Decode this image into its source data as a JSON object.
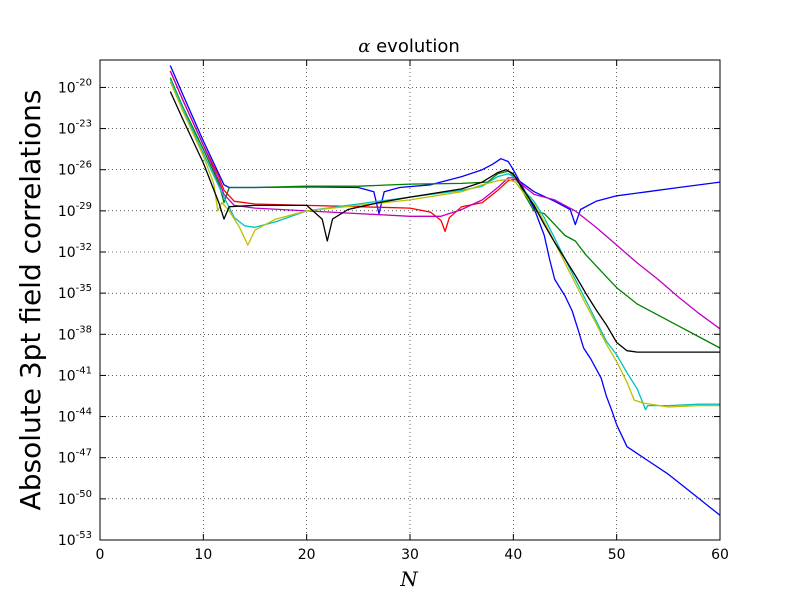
{
  "chart_data": {
    "type": "line",
    "title_symbol": "α",
    "title_rest": " evolution",
    "xlabel": "N",
    "ylabel": "Absolute 3pt field correlations",
    "xlim": [
      0,
      60
    ],
    "ylim_log10": [
      -53,
      -18
    ],
    "yscale": "log",
    "grid": true,
    "x_ticks": [
      0,
      10,
      20,
      30,
      40,
      50,
      60
    ],
    "y_tick_exponents": [
      -53,
      -50,
      -47,
      -44,
      -41,
      -38,
      -35,
      -32,
      -29,
      -26,
      -23,
      -20
    ],
    "y_tick_base": "10",
    "series": [
      {
        "name": "series-blue",
        "color": "#0000ff",
        "points": [
          [
            6.8,
            -18.4
          ],
          [
            8,
            -20.5
          ],
          [
            10,
            -23.9
          ],
          [
            12,
            -27.1
          ],
          [
            12.5,
            -27.3
          ],
          [
            15,
            -27.3
          ],
          [
            20,
            -27.25
          ],
          [
            25,
            -27.3
          ],
          [
            26.5,
            -27.6
          ],
          [
            27,
            -29.2
          ],
          [
            27.5,
            -27.6
          ],
          [
            29,
            -27.3
          ],
          [
            32,
            -27.1
          ],
          [
            35,
            -26.5
          ],
          [
            37,
            -26
          ],
          [
            38,
            -25.6
          ],
          [
            38.8,
            -25.2
          ],
          [
            39.5,
            -25.4
          ],
          [
            40,
            -26
          ],
          [
            41,
            -27.4
          ],
          [
            42,
            -28.8
          ],
          [
            43,
            -30.8
          ],
          [
            43.5,
            -32.5
          ],
          [
            44,
            -34
          ],
          [
            45,
            -35.2
          ],
          [
            45.7,
            -36.3
          ],
          [
            46.2,
            -37.5
          ],
          [
            46.8,
            -39
          ],
          [
            47.5,
            -39.8
          ],
          [
            48,
            -40.5
          ],
          [
            48.5,
            -41.2
          ],
          [
            49,
            -42.5
          ],
          [
            49.5,
            -43.5
          ],
          [
            50,
            -44.6
          ],
          [
            51,
            -46.2
          ],
          [
            53,
            -47.2
          ],
          [
            55,
            -48.2
          ],
          [
            57,
            -49.4
          ],
          [
            59,
            -50.6
          ],
          [
            60,
            -51.2
          ]
        ]
      },
      {
        "name": "series-blue-rising",
        "color": "#0000ff",
        "points": [
          [
            40,
            -26.5
          ],
          [
            42,
            -27.6
          ],
          [
            44,
            -28.3
          ],
          [
            45.5,
            -28.9
          ],
          [
            46,
            -30
          ],
          [
            46.5,
            -28.9
          ],
          [
            48,
            -28.3
          ],
          [
            50,
            -27.9
          ],
          [
            53,
            -27.6
          ],
          [
            56,
            -27.3
          ],
          [
            60,
            -26.9
          ]
        ]
      },
      {
        "name": "series-green",
        "color": "#008000",
        "points": [
          [
            6.8,
            -19.3
          ],
          [
            8,
            -21.4
          ],
          [
            10,
            -24.5
          ],
          [
            11.5,
            -27
          ],
          [
            12,
            -28.4
          ],
          [
            12.5,
            -27.3
          ],
          [
            15,
            -27.3
          ],
          [
            20,
            -27.2
          ],
          [
            25,
            -27.2
          ],
          [
            30,
            -27.05
          ],
          [
            35,
            -27
          ],
          [
            37.5,
            -26.9
          ],
          [
            38.5,
            -26.3
          ],
          [
            39.5,
            -26.1
          ],
          [
            40.3,
            -26.6
          ],
          [
            41,
            -27.7
          ],
          [
            42,
            -29
          ],
          [
            43,
            -29.2
          ],
          [
            44,
            -30
          ],
          [
            45,
            -30.8
          ],
          [
            46,
            -31.2
          ],
          [
            47,
            -32.2
          ],
          [
            48,
            -33
          ],
          [
            49,
            -33.8
          ],
          [
            50,
            -34.6
          ],
          [
            51,
            -35.2
          ],
          [
            52,
            -35.8
          ],
          [
            54,
            -36.6
          ],
          [
            56,
            -37.4
          ],
          [
            58,
            -38.2
          ],
          [
            60,
            -39
          ]
        ]
      },
      {
        "name": "series-red",
        "color": "#ff0000",
        "points": [
          [
            6.8,
            -18.8
          ],
          [
            8,
            -20.9
          ],
          [
            10,
            -24.2
          ],
          [
            11.5,
            -26.5
          ],
          [
            12,
            -27.5
          ],
          [
            13,
            -28.3
          ],
          [
            15,
            -28.5
          ],
          [
            20,
            -28.6
          ],
          [
            25,
            -28.7
          ],
          [
            30,
            -28.8
          ],
          [
            32,
            -29.1
          ],
          [
            33,
            -29.7
          ],
          [
            33.4,
            -30.5
          ],
          [
            33.8,
            -29.5
          ],
          [
            35,
            -28.7
          ],
          [
            37,
            -28.4
          ],
          [
            38.5,
            -27.5
          ],
          [
            39.5,
            -26.8
          ],
          [
            40.2,
            -26.7
          ],
          [
            41,
            -27.4
          ]
        ]
      },
      {
        "name": "series-magenta",
        "color": "#c000c0",
        "points": [
          [
            6.8,
            -18.8
          ],
          [
            8,
            -20.9
          ],
          [
            10,
            -24.2
          ],
          [
            11.5,
            -26.8
          ],
          [
            12,
            -27.8
          ],
          [
            13,
            -28.6
          ],
          [
            15,
            -28.8
          ],
          [
            20,
            -29
          ],
          [
            25,
            -29.2
          ],
          [
            30,
            -29.4
          ],
          [
            33,
            -29.4
          ],
          [
            35,
            -28.9
          ],
          [
            37,
            -28.2
          ],
          [
            38.5,
            -27.3
          ],
          [
            39.5,
            -26.6
          ],
          [
            40.2,
            -26.6
          ],
          [
            41,
            -27.2
          ],
          [
            42,
            -27.8
          ],
          [
            43,
            -28
          ],
          [
            44,
            -28.2
          ],
          [
            46,
            -29
          ],
          [
            48,
            -30.2
          ],
          [
            50,
            -31.5
          ],
          [
            52,
            -32.8
          ],
          [
            54,
            -34
          ],
          [
            56,
            -35.3
          ],
          [
            58,
            -36.5
          ],
          [
            60,
            -37.6
          ]
        ]
      },
      {
        "name": "series-cyan",
        "color": "#00bfbf",
        "points": [
          [
            6.8,
            -19.4
          ],
          [
            8,
            -21.5
          ],
          [
            10,
            -24.8
          ],
          [
            11.5,
            -27.2
          ],
          [
            12,
            -28
          ],
          [
            13,
            -29.5
          ],
          [
            14,
            -30.1
          ],
          [
            15,
            -30.2
          ],
          [
            17,
            -29.8
          ],
          [
            20,
            -29
          ],
          [
            25,
            -28.5
          ],
          [
            30,
            -28
          ],
          [
            35,
            -27.5
          ],
          [
            37,
            -27.2
          ],
          [
            38.5,
            -26.5
          ],
          [
            39.5,
            -26.3
          ],
          [
            40.2,
            -26.6
          ],
          [
            41,
            -27.5
          ],
          [
            42,
            -28.3
          ],
          [
            43,
            -29.5
          ],
          [
            44,
            -31
          ],
          [
            45,
            -32.5
          ],
          [
            46,
            -34
          ],
          [
            47,
            -35.5
          ],
          [
            48,
            -37
          ],
          [
            49,
            -38.5
          ],
          [
            50,
            -39.5
          ],
          [
            51,
            -40.8
          ],
          [
            52,
            -42
          ],
          [
            52.8,
            -43.5
          ],
          [
            53,
            -43.2
          ],
          [
            55,
            -43.2
          ],
          [
            58,
            -43.1
          ],
          [
            60,
            -43.1
          ]
        ]
      },
      {
        "name": "series-yellow",
        "color": "#bfbf00",
        "points": [
          [
            6.8,
            -19.6
          ],
          [
            8,
            -21.7
          ],
          [
            10,
            -25
          ],
          [
            11,
            -27
          ],
          [
            11.4,
            -29
          ],
          [
            11.8,
            -28.4
          ],
          [
            12.5,
            -29
          ],
          [
            13.5,
            -30.2
          ],
          [
            14.3,
            -31.5
          ],
          [
            15,
            -30.4
          ],
          [
            17,
            -29.6
          ],
          [
            20,
            -29
          ],
          [
            25,
            -28.6
          ],
          [
            30,
            -28.2
          ],
          [
            35,
            -27.6
          ],
          [
            37,
            -27.1
          ],
          [
            38.5,
            -26.8
          ],
          [
            39.5,
            -26.7
          ],
          [
            40.2,
            -26.9
          ],
          [
            41,
            -27.7
          ],
          [
            42,
            -28.5
          ],
          [
            43,
            -29.8
          ],
          [
            44,
            -31.3
          ],
          [
            45,
            -32.8
          ],
          [
            46,
            -34.3
          ],
          [
            47,
            -35.8
          ],
          [
            48,
            -37.2
          ],
          [
            49,
            -38.7
          ],
          [
            50,
            -40
          ],
          [
            51,
            -41.5
          ],
          [
            51.7,
            -42.8
          ],
          [
            52.5,
            -43
          ],
          [
            55,
            -43.3
          ],
          [
            58,
            -43.2
          ],
          [
            60,
            -43.2
          ]
        ]
      },
      {
        "name": "series-black",
        "color": "#000000",
        "points": [
          [
            6.8,
            -20.3
          ],
          [
            8,
            -22.3
          ],
          [
            10,
            -25.5
          ],
          [
            11.5,
            -28.4
          ],
          [
            12,
            -29.6
          ],
          [
            12.5,
            -28.7
          ],
          [
            15,
            -28.6
          ],
          [
            20,
            -28.6
          ],
          [
            21.5,
            -29.6
          ],
          [
            22,
            -31.2
          ],
          [
            22.5,
            -29.6
          ],
          [
            24,
            -28.9
          ],
          [
            27,
            -28.4
          ],
          [
            30,
            -28
          ],
          [
            35,
            -27.4
          ],
          [
            37,
            -26.9
          ],
          [
            38.5,
            -26.2
          ],
          [
            39.3,
            -26
          ],
          [
            40,
            -26.3
          ],
          [
            41,
            -27.5
          ],
          [
            42,
            -28.6
          ],
          [
            43,
            -30
          ],
          [
            44,
            -31.3
          ],
          [
            45,
            -32.5
          ],
          [
            46,
            -33.7
          ],
          [
            47,
            -35
          ],
          [
            48,
            -36.2
          ],
          [
            49,
            -37.3
          ],
          [
            50,
            -38.6
          ],
          [
            51,
            -39.2
          ],
          [
            52,
            -39.3
          ],
          [
            55,
            -39.3
          ],
          [
            58,
            -39.3
          ],
          [
            60,
            -39.3
          ]
        ]
      }
    ]
  }
}
